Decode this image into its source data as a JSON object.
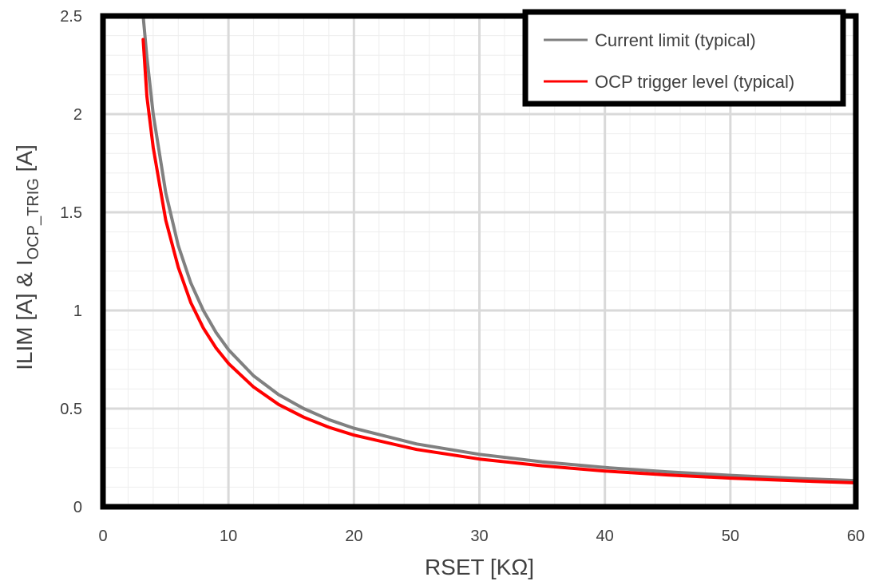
{
  "chart_data": {
    "type": "line",
    "xlabel": "RSET [KΩ]",
    "ylabel": {
      "main": "ILIM [A] & I",
      "subscript": "OCP_TRIG",
      "suffix": " [A]"
    },
    "xlim": [
      0,
      60
    ],
    "ylim": [
      0,
      2.5
    ],
    "x_ticks": [
      0,
      10,
      20,
      30,
      40,
      50,
      60
    ],
    "x_tick_labels": [
      "0",
      "10",
      "20",
      "30",
      "40",
      "50",
      "60"
    ],
    "y_ticks": [
      0,
      0.5,
      1,
      1.5,
      2,
      2.5
    ],
    "y_tick_labels": [
      "0",
      "0.5",
      "1",
      "1.5",
      "2",
      "2.5"
    ],
    "grid": true,
    "minor_grid": true,
    "legend_position": "top-right",
    "series": [
      {
        "name": "Current limit (typical)",
        "color": "#808080",
        "x": [
          3.2,
          3.5,
          4,
          5,
          6,
          7,
          8,
          9,
          10,
          12,
          14,
          16,
          18,
          20,
          25,
          30,
          35,
          40,
          45,
          50,
          55,
          60
        ],
        "y": [
          2.5,
          2.29,
          2.0,
          1.6,
          1.33,
          1.14,
          1.0,
          0.889,
          0.8,
          0.667,
          0.571,
          0.5,
          0.444,
          0.4,
          0.32,
          0.267,
          0.229,
          0.2,
          0.178,
          0.16,
          0.145,
          0.133
        ]
      },
      {
        "name": "OCP trigger level (typical)",
        "color": "#ff0000",
        "x": [
          3.2,
          3.5,
          4,
          5,
          6,
          7,
          8,
          9,
          10,
          12,
          14,
          16,
          18,
          20,
          25,
          30,
          35,
          40,
          45,
          50,
          55,
          60
        ],
        "y": [
          2.38,
          2.09,
          1.83,
          1.46,
          1.22,
          1.04,
          0.91,
          0.81,
          0.73,
          0.61,
          0.521,
          0.456,
          0.405,
          0.365,
          0.292,
          0.243,
          0.209,
          0.182,
          0.162,
          0.146,
          0.133,
          0.122
        ]
      }
    ]
  }
}
